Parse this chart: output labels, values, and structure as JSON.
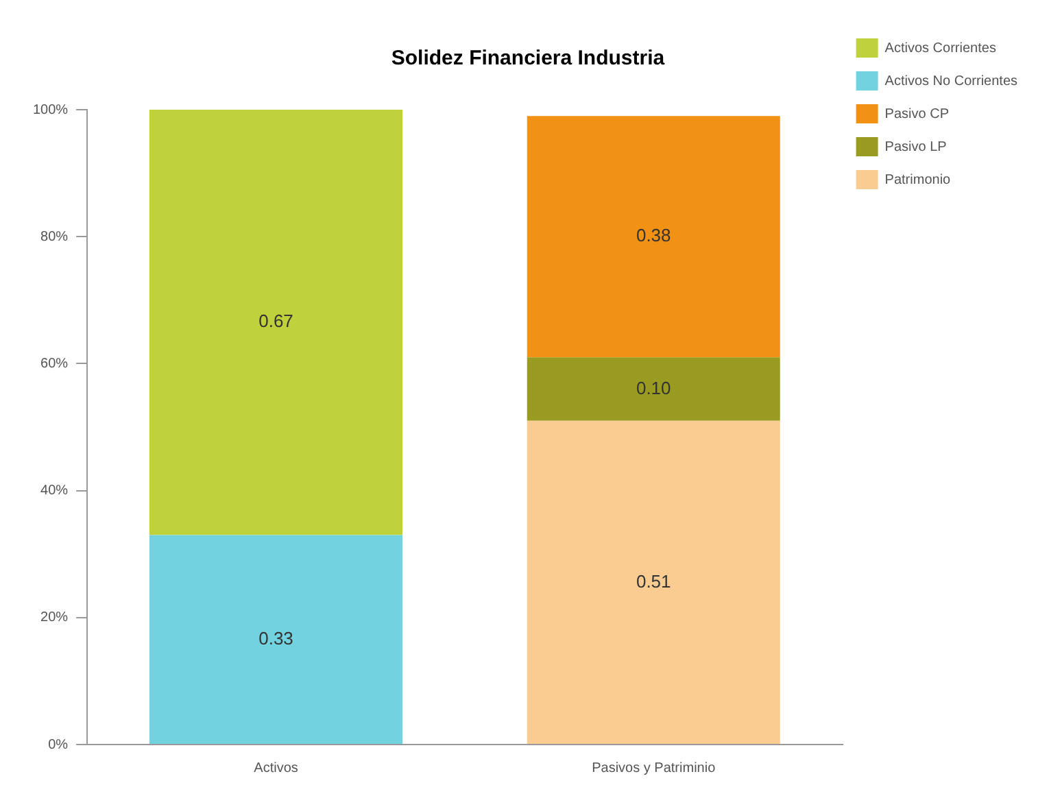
{
  "chart_data": {
    "type": "bar",
    "title": "Solidez Financiera Industria",
    "categories": [
      "Activos",
      "Pasivos y Patriminio"
    ],
    "stacked": true,
    "legend": "top right",
    "grid": false,
    "ylim": [
      0,
      1
    ],
    "yticks": [
      {
        "value": 0,
        "label": "0%"
      },
      {
        "value": 0.2,
        "label": "20%"
      },
      {
        "value": 0.4,
        "label": "40%"
      },
      {
        "value": 0.6,
        "label": "60%"
      },
      {
        "value": 0.8,
        "label": "80%"
      },
      {
        "value": 1,
        "label": "100%"
      }
    ],
    "series": [
      {
        "name": "Activos No Corrientes",
        "color": "#72d3e0",
        "values": [
          0.33,
          null
        ],
        "value_labels": [
          "0.33",
          null
        ]
      },
      {
        "name": "Activos Corrientes",
        "color": "#bfd13b",
        "values": [
          0.67,
          null
        ],
        "value_labels": [
          "0.67",
          null
        ]
      },
      {
        "name": "Patrimonio",
        "color": "#fbcc92",
        "values": [
          null,
          0.51
        ],
        "value_labels": [
          null,
          "0.51"
        ]
      },
      {
        "name": "Pasivo LP",
        "color": "#9a9c22",
        "values": [
          null,
          0.1
        ],
        "value_labels": [
          null,
          "0.10"
        ]
      },
      {
        "name": "Pasivo CP",
        "color": "#f19214",
        "values": [
          null,
          0.38
        ],
        "value_labels": [
          null,
          "0.38"
        ]
      }
    ]
  }
}
